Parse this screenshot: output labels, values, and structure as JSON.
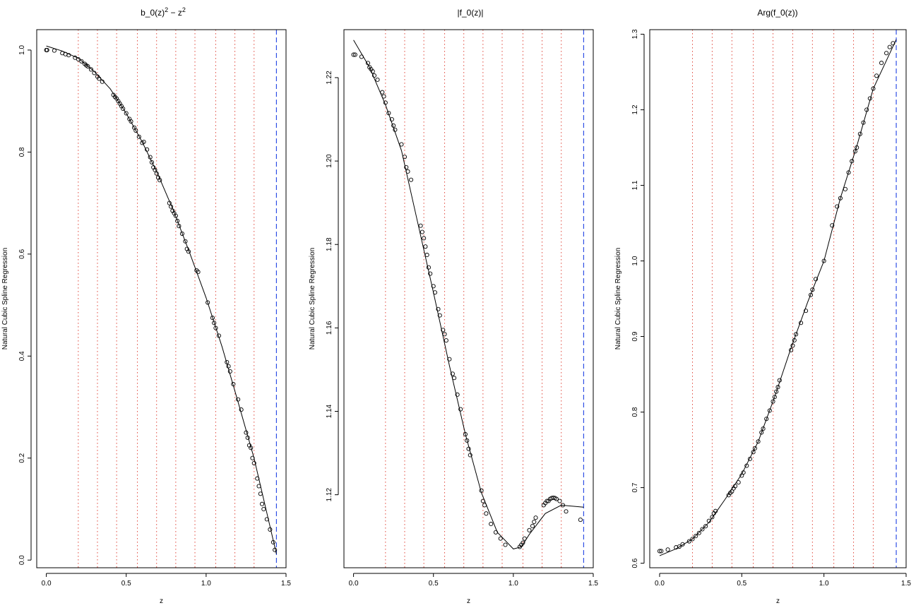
{
  "chart_data": [
    {
      "type": "scatter",
      "title": "b_0(z)^2 - z^2",
      "title_parts": [
        "b_0(z)",
        "2",
        " − z",
        "2"
      ],
      "xlabel": "z",
      "ylabel": "Natural Cubic Spline Regression",
      "xlim": [
        -0.06,
        1.5
      ],
      "ylim": [
        -0.015,
        1.04
      ],
      "xticks": [
        0.0,
        0.5,
        1.0,
        1.5
      ],
      "xtick_labels": [
        "0.0",
        "0.5",
        "1.0",
        "1.5"
      ],
      "yticks": [
        0.0,
        0.2,
        0.4,
        0.6,
        0.8,
        1.0
      ],
      "ytick_labels": [
        "0.0",
        "0.2",
        "0.4",
        "0.6",
        "0.8",
        "1.0"
      ],
      "knots": [
        0.2,
        0.32,
        0.44,
        0.57,
        0.69,
        0.81,
        0.93,
        1.06,
        1.18,
        1.3
      ],
      "boundary": 1.44,
      "points": [
        [
          0.0,
          1.0
        ],
        [
          0.005,
          1.0
        ],
        [
          0.05,
          0.999
        ],
        [
          0.1,
          0.994
        ],
        [
          0.12,
          0.992
        ],
        [
          0.14,
          0.99
        ],
        [
          0.18,
          0.985
        ],
        [
          0.2,
          0.982
        ],
        [
          0.22,
          0.978
        ],
        [
          0.24,
          0.973
        ],
        [
          0.25,
          0.97
        ],
        [
          0.26,
          0.968
        ],
        [
          0.28,
          0.962
        ],
        [
          0.3,
          0.955
        ],
        [
          0.32,
          0.948
        ],
        [
          0.33,
          0.944
        ],
        [
          0.35,
          0.938
        ],
        [
          0.42,
          0.912
        ],
        [
          0.43,
          0.908
        ],
        [
          0.44,
          0.905
        ],
        [
          0.45,
          0.9
        ],
        [
          0.46,
          0.895
        ],
        [
          0.47,
          0.89
        ],
        [
          0.48,
          0.885
        ],
        [
          0.5,
          0.876
        ],
        [
          0.52,
          0.865
        ],
        [
          0.53,
          0.86
        ],
        [
          0.55,
          0.848
        ],
        [
          0.56,
          0.842
        ],
        [
          0.58,
          0.83
        ],
        [
          0.6,
          0.818
        ],
        [
          0.61,
          0.82
        ],
        [
          0.63,
          0.805
        ],
        [
          0.65,
          0.79
        ],
        [
          0.66,
          0.78
        ],
        [
          0.67,
          0.77
        ],
        [
          0.68,
          0.765
        ],
        [
          0.69,
          0.758
        ],
        [
          0.7,
          0.75
        ],
        [
          0.71,
          0.745
        ],
        [
          0.77,
          0.7
        ],
        [
          0.78,
          0.693
        ],
        [
          0.79,
          0.685
        ],
        [
          0.8,
          0.68
        ],
        [
          0.81,
          0.675
        ],
        [
          0.82,
          0.665
        ],
        [
          0.83,
          0.655
        ],
        [
          0.85,
          0.64
        ],
        [
          0.87,
          0.625
        ],
        [
          0.88,
          0.61
        ],
        [
          0.89,
          0.605
        ],
        [
          0.94,
          0.568
        ],
        [
          0.95,
          0.565
        ],
        [
          1.01,
          0.505
        ],
        [
          1.04,
          0.475
        ],
        [
          1.05,
          0.465
        ],
        [
          1.06,
          0.455
        ],
        [
          1.08,
          0.44
        ],
        [
          1.13,
          0.388
        ],
        [
          1.14,
          0.38
        ],
        [
          1.15,
          0.37
        ],
        [
          1.17,
          0.345
        ],
        [
          1.2,
          0.315
        ],
        [
          1.22,
          0.295
        ],
        [
          1.25,
          0.25
        ],
        [
          1.26,
          0.24
        ],
        [
          1.27,
          0.225
        ],
        [
          1.28,
          0.22
        ],
        [
          1.29,
          0.2
        ],
        [
          1.3,
          0.19
        ],
        [
          1.32,
          0.16
        ],
        [
          1.33,
          0.145
        ],
        [
          1.34,
          0.13
        ],
        [
          1.35,
          0.11
        ],
        [
          1.36,
          0.1
        ],
        [
          1.38,
          0.08
        ],
        [
          1.4,
          0.06
        ],
        [
          1.42,
          0.035
        ],
        [
          1.43,
          0.02
        ]
      ],
      "fit": [
        [
          0.0,
          1.008
        ],
        [
          0.1,
          0.998
        ],
        [
          0.2,
          0.984
        ],
        [
          0.3,
          0.958
        ],
        [
          0.4,
          0.924
        ],
        [
          0.5,
          0.876
        ],
        [
          0.6,
          0.82
        ],
        [
          0.7,
          0.755
        ],
        [
          0.8,
          0.682
        ],
        [
          0.9,
          0.6
        ],
        [
          1.0,
          0.514
        ],
        [
          1.1,
          0.418
        ],
        [
          1.2,
          0.31
        ],
        [
          1.3,
          0.2
        ],
        [
          1.44,
          0.012
        ]
      ]
    },
    {
      "type": "scatter",
      "title": "|f_0(z)|",
      "xlabel": "z",
      "ylabel": "Natural Cubic Spline Regression",
      "xlim": [
        -0.06,
        1.5
      ],
      "ylim": [
        1.1025,
        1.2315
      ],
      "xticks": [
        0.0,
        0.5,
        1.0,
        1.5
      ],
      "xtick_labels": [
        "0.0",
        "0.5",
        "1.0",
        "1.5"
      ],
      "yticks": [
        1.12,
        1.14,
        1.16,
        1.18,
        1.2,
        1.22
      ],
      "ytick_labels": [
        "1.12",
        "1.14",
        "1.16",
        "1.18",
        "1.20",
        "1.22"
      ],
      "knots": [
        0.2,
        0.32,
        0.44,
        0.57,
        0.69,
        0.81,
        0.93,
        1.06,
        1.18,
        1.3
      ],
      "boundary": 1.44,
      "points": [
        [
          0.0,
          1.2255
        ],
        [
          0.01,
          1.2255
        ],
        [
          0.05,
          1.225
        ],
        [
          0.09,
          1.2235
        ],
        [
          0.1,
          1.2225
        ],
        [
          0.11,
          1.222
        ],
        [
          0.12,
          1.2215
        ],
        [
          0.13,
          1.2205
        ],
        [
          0.15,
          1.2195
        ],
        [
          0.18,
          1.2165
        ],
        [
          0.19,
          1.2155
        ],
        [
          0.2,
          1.214
        ],
        [
          0.22,
          1.2115
        ],
        [
          0.24,
          1.21
        ],
        [
          0.25,
          1.2085
        ],
        [
          0.26,
          1.2075
        ],
        [
          0.3,
          1.204
        ],
        [
          0.32,
          1.201
        ],
        [
          0.33,
          1.1985
        ],
        [
          0.34,
          1.1975
        ],
        [
          0.36,
          1.1955
        ],
        [
          0.42,
          1.1845
        ],
        [
          0.43,
          1.183
        ],
        [
          0.44,
          1.1815
        ],
        [
          0.45,
          1.1795
        ],
        [
          0.46,
          1.1775
        ],
        [
          0.47,
          1.1745
        ],
        [
          0.48,
          1.173
        ],
        [
          0.5,
          1.17
        ],
        [
          0.51,
          1.1685
        ],
        [
          0.53,
          1.1645
        ],
        [
          0.54,
          1.163
        ],
        [
          0.56,
          1.1595
        ],
        [
          0.57,
          1.1585
        ],
        [
          0.58,
          1.157
        ],
        [
          0.6,
          1.1525
        ],
        [
          0.62,
          1.149
        ],
        [
          0.63,
          1.148
        ],
        [
          0.65,
          1.144
        ],
        [
          0.67,
          1.1405
        ],
        [
          0.7,
          1.1345
        ],
        [
          0.71,
          1.133
        ],
        [
          0.72,
          1.131
        ],
        [
          0.73,
          1.1295
        ],
        [
          0.8,
          1.121
        ],
        [
          0.81,
          1.1185
        ],
        [
          0.82,
          1.1175
        ],
        [
          0.83,
          1.1155
        ],
        [
          0.86,
          1.113
        ],
        [
          0.89,
          1.111
        ],
        [
          0.92,
          1.1095
        ],
        [
          0.95,
          1.108
        ],
        [
          1.04,
          1.1075
        ],
        [
          1.05,
          1.108
        ],
        [
          1.06,
          1.1085
        ],
        [
          1.07,
          1.1095
        ],
        [
          1.1,
          1.1115
        ],
        [
          1.12,
          1.1125
        ],
        [
          1.13,
          1.1135
        ],
        [
          1.14,
          1.1145
        ],
        [
          1.19,
          1.1175
        ],
        [
          1.2,
          1.118
        ],
        [
          1.21,
          1.1185
        ],
        [
          1.22,
          1.1185
        ],
        [
          1.23,
          1.119
        ],
        [
          1.24,
          1.1192
        ],
        [
          1.25,
          1.1193
        ],
        [
          1.26,
          1.1192
        ],
        [
          1.27,
          1.119
        ],
        [
          1.29,
          1.1185
        ],
        [
          1.31,
          1.1175
        ],
        [
          1.33,
          1.116
        ],
        [
          1.42,
          1.114
        ]
      ],
      "fit": [
        [
          0.0,
          1.229
        ],
        [
          0.1,
          1.2225
        ],
        [
          0.2,
          1.2135
        ],
        [
          0.3,
          1.2025
        ],
        [
          0.4,
          1.1855
        ],
        [
          0.5,
          1.1685
        ],
        [
          0.6,
          1.151
        ],
        [
          0.7,
          1.1345
        ],
        [
          0.8,
          1.1205
        ],
        [
          0.9,
          1.111
        ],
        [
          1.0,
          1.107
        ],
        [
          1.05,
          1.1075
        ],
        [
          1.1,
          1.1105
        ],
        [
          1.2,
          1.1155
        ],
        [
          1.3,
          1.1175
        ],
        [
          1.44,
          1.117
        ]
      ]
    },
    {
      "type": "scatter",
      "title": "Arg(f_0(z))",
      "xlabel": "z",
      "ylabel": "Natural Cubic Spline Regression",
      "xlim": [
        -0.06,
        1.5
      ],
      "ylim": [
        0.594,
        1.306
      ],
      "xticks": [
        0.0,
        0.5,
        1.0,
        1.5
      ],
      "xtick_labels": [
        "0.0",
        "0.5",
        "1.0",
        "1.5"
      ],
      "yticks": [
        0.6,
        0.7,
        0.8,
        0.9,
        1.0,
        1.1,
        1.2,
        1.3
      ],
      "ytick_labels": [
        "0.6",
        "0.7",
        "0.8",
        "0.9",
        "1.0",
        "1.1",
        "1.2",
        "1.3"
      ],
      "knots": [
        0.2,
        0.32,
        0.44,
        0.57,
        0.69,
        0.81,
        0.93,
        1.06,
        1.18,
        1.3
      ],
      "boundary": 1.44,
      "points": [
        [
          0.0,
          0.616
        ],
        [
          0.01,
          0.616
        ],
        [
          0.05,
          0.618
        ],
        [
          0.1,
          0.621
        ],
        [
          0.12,
          0.622
        ],
        [
          0.14,
          0.625
        ],
        [
          0.18,
          0.629
        ],
        [
          0.2,
          0.632
        ],
        [
          0.22,
          0.636
        ],
        [
          0.24,
          0.64
        ],
        [
          0.26,
          0.645
        ],
        [
          0.28,
          0.649
        ],
        [
          0.3,
          0.656
        ],
        [
          0.32,
          0.661
        ],
        [
          0.33,
          0.666
        ],
        [
          0.34,
          0.669
        ],
        [
          0.42,
          0.69
        ],
        [
          0.43,
          0.693
        ],
        [
          0.44,
          0.695
        ],
        [
          0.45,
          0.699
        ],
        [
          0.46,
          0.702
        ],
        [
          0.48,
          0.707
        ],
        [
          0.5,
          0.716
        ],
        [
          0.51,
          0.72
        ],
        [
          0.53,
          0.729
        ],
        [
          0.55,
          0.738
        ],
        [
          0.57,
          0.747
        ],
        [
          0.58,
          0.752
        ],
        [
          0.6,
          0.761
        ],
        [
          0.62,
          0.773
        ],
        [
          0.63,
          0.778
        ],
        [
          0.65,
          0.791
        ],
        [
          0.67,
          0.802
        ],
        [
          0.69,
          0.814
        ],
        [
          0.7,
          0.82
        ],
        [
          0.71,
          0.827
        ],
        [
          0.72,
          0.833
        ],
        [
          0.73,
          0.842
        ],
        [
          0.8,
          0.882
        ],
        [
          0.81,
          0.888
        ],
        [
          0.82,
          0.895
        ],
        [
          0.83,
          0.903
        ],
        [
          0.86,
          0.918
        ],
        [
          0.89,
          0.934
        ],
        [
          0.92,
          0.955
        ],
        [
          0.93,
          0.962
        ],
        [
          0.95,
          0.976
        ],
        [
          1.0,
          1.0
        ],
        [
          1.05,
          1.047
        ],
        [
          1.08,
          1.072
        ],
        [
          1.1,
          1.083
        ],
        [
          1.13,
          1.095
        ],
        [
          1.15,
          1.117
        ],
        [
          1.17,
          1.132
        ],
        [
          1.19,
          1.145
        ],
        [
          1.2,
          1.15
        ],
        [
          1.22,
          1.168
        ],
        [
          1.24,
          1.183
        ],
        [
          1.26,
          1.2
        ],
        [
          1.28,
          1.215
        ],
        [
          1.3,
          1.228
        ],
        [
          1.32,
          1.245
        ],
        [
          1.35,
          1.262
        ],
        [
          1.38,
          1.275
        ],
        [
          1.4,
          1.283
        ],
        [
          1.42,
          1.288
        ]
      ],
      "fit": [
        [
          0.0,
          0.61
        ],
        [
          0.1,
          0.619
        ],
        [
          0.2,
          0.632
        ],
        [
          0.3,
          0.654
        ],
        [
          0.4,
          0.685
        ],
        [
          0.5,
          0.718
        ],
        [
          0.6,
          0.761
        ],
        [
          0.7,
          0.82
        ],
        [
          0.8,
          0.885
        ],
        [
          0.9,
          0.945
        ],
        [
          1.0,
          1.0
        ],
        [
          1.1,
          1.083
        ],
        [
          1.2,
          1.152
        ],
        [
          1.3,
          1.228
        ],
        [
          1.44,
          1.293
        ]
      ]
    }
  ]
}
